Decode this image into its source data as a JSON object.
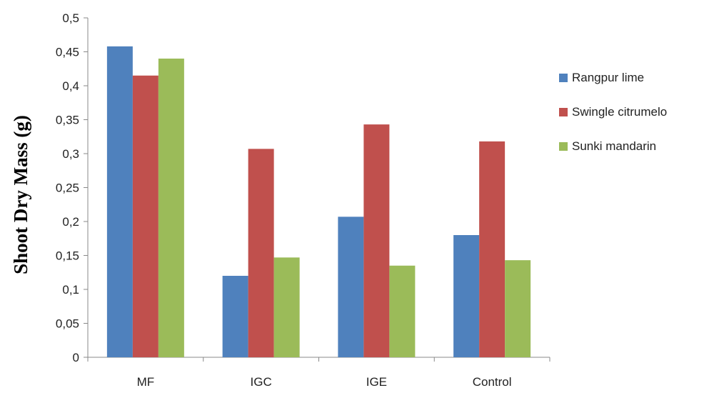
{
  "chart_data": {
    "type": "bar",
    "title": "",
    "xlabel": "",
    "ylabel": "Shoot Dry Mass (g)",
    "ylim": [
      0,
      0.5
    ],
    "yticks": [
      "0",
      "0,05",
      "0,1",
      "0,15",
      "0,2",
      "0,25",
      "0,3",
      "0,35",
      "0,4",
      "0,45",
      "0,5"
    ],
    "ytick_values": [
      0,
      0.05,
      0.1,
      0.15,
      0.2,
      0.25,
      0.3,
      0.35,
      0.4,
      0.45,
      0.5
    ],
    "categories": [
      "MF",
      "IGC",
      "IGE",
      "Control"
    ],
    "series": [
      {
        "name": "Rangpur lime",
        "color": "#4f81bd",
        "values": [
          0.458,
          0.12,
          0.207,
          0.18
        ]
      },
      {
        "name": "Swingle citrumelo",
        "color": "#c0504d",
        "values": [
          0.415,
          0.307,
          0.343,
          0.318
        ]
      },
      {
        "name": "Sunki mandarin",
        "color": "#9bbb59",
        "values": [
          0.44,
          0.147,
          0.135,
          0.143
        ]
      }
    ],
    "grid": false,
    "legend_position": "right"
  }
}
